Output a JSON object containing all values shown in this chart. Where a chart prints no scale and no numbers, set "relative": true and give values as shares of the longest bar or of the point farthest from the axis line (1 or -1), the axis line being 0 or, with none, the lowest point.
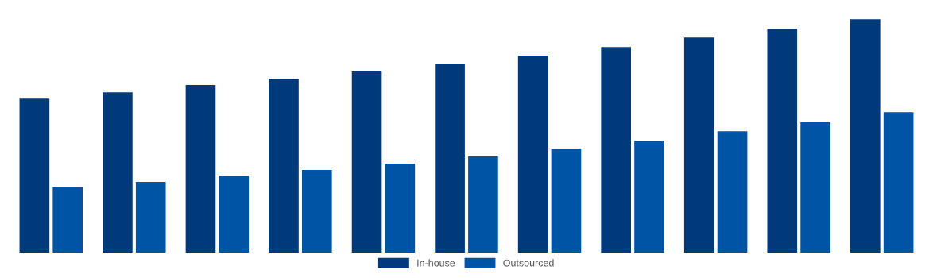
{
  "chart_data": {
    "type": "bar",
    "relative": true,
    "categories": [
      null,
      null,
      null,
      null,
      null,
      null,
      null,
      null,
      null,
      null,
      null
    ],
    "series": [
      {
        "name": "In-house",
        "color": "#003a7a",
        "values": [
          0.66,
          0.687,
          0.718,
          0.745,
          0.776,
          0.81,
          0.844,
          0.881,
          0.922,
          0.959,
          1
        ]
      },
      {
        "name": "Outsourced",
        "color": "#0054a6",
        "values": [
          0.279,
          0.303,
          0.33,
          0.354,
          0.381,
          0.412,
          0.446,
          0.48,
          0.52,
          0.558,
          0.602
        ]
      }
    ],
    "legend": "bottom",
    "grid": false
  }
}
